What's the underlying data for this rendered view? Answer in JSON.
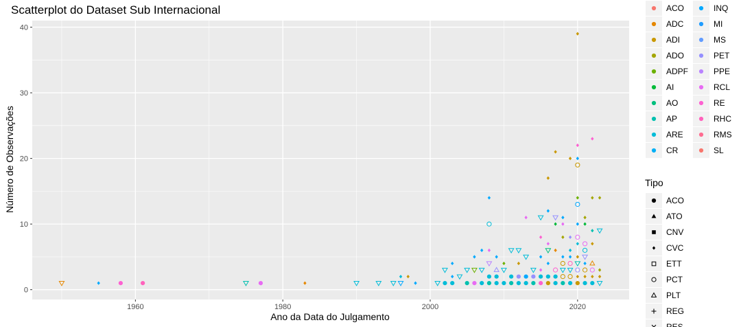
{
  "chart_data": {
    "type": "scatter",
    "title": "Scatterplot do Dataset Sub Internacional",
    "xlabel": "Ano da Data do Julgamento",
    "ylabel": "Número de Observações",
    "xlim": [
      1946,
      2027
    ],
    "ylim": [
      -1.5,
      41
    ],
    "xticks": [
      1960,
      1980,
      2000,
      2020
    ],
    "yticks": [
      0,
      10,
      20,
      30,
      40
    ],
    "grid": true,
    "colors": {
      "panel_bg": "#ebebeb",
      "grid": "#ffffff"
    },
    "color_legend": {
      "title": "",
      "entries": [
        {
          "label": "ACO",
          "color": "#F8766D"
        },
        {
          "label": "ADC",
          "color": "#E58700"
        },
        {
          "label": "ADI",
          "color": "#C99800"
        },
        {
          "label": "ADO",
          "color": "#A3A500"
        },
        {
          "label": "ADPF",
          "color": "#6BB100"
        },
        {
          "label": "AI",
          "color": "#00BA38"
        },
        {
          "label": "AO",
          "color": "#00BF7D"
        },
        {
          "label": "AP",
          "color": "#00C0AF"
        },
        {
          "label": "ARE",
          "color": "#00BCD8"
        },
        {
          "label": "CR",
          "color": "#00B0F6"
        },
        {
          "label": "INQ",
          "color": "#00A9FF"
        },
        {
          "label": "MI",
          "color": "#1F9CFF"
        },
        {
          "label": "MS",
          "color": "#619CFF"
        },
        {
          "label": "PET",
          "color": "#9590FF"
        },
        {
          "label": "PPE",
          "color": "#B983FF"
        },
        {
          "label": "RCL",
          "color": "#E76BF3"
        },
        {
          "label": "RE",
          "color": "#FD61D1"
        },
        {
          "label": "RHC",
          "color": "#FF62BC"
        },
        {
          "label": "RMS",
          "color": "#FF6C91"
        },
        {
          "label": "SL",
          "color": "#F8766D"
        }
      ]
    },
    "shape_legend": {
      "title": "Tipo",
      "entries": [
        {
          "label": "ACO",
          "shape": "circle"
        },
        {
          "label": "ATO",
          "shape": "triangle"
        },
        {
          "label": "CNV",
          "shape": "square"
        },
        {
          "label": "CVC",
          "shape": "diamond"
        },
        {
          "label": "ETT",
          "shape": "open-square"
        },
        {
          "label": "PCT",
          "shape": "open-circle"
        },
        {
          "label": "PLT",
          "shape": "open-triangle"
        },
        {
          "label": "REG",
          "shape": "plus"
        },
        {
          "label": "RES",
          "shape": "cross"
        }
      ]
    },
    "points": [
      {
        "x": 1950,
        "y": 1,
        "color": "#E58700",
        "shape": "open-triangle-down"
      },
      {
        "x": 1955,
        "y": 1,
        "color": "#00A9FF",
        "shape": "diamond"
      },
      {
        "x": 1958,
        "y": 1,
        "color": "#FD61D1",
        "shape": "circle"
      },
      {
        "x": 1961,
        "y": 1,
        "color": "#FF62BC",
        "shape": "circle"
      },
      {
        "x": 1975,
        "y": 1,
        "color": "#00C0AF",
        "shape": "open-triangle-down"
      },
      {
        "x": 1977,
        "y": 1,
        "color": "#E76BF3",
        "shape": "circle"
      },
      {
        "x": 1983,
        "y": 1,
        "color": "#E58700",
        "shape": "diamond"
      },
      {
        "x": 1990,
        "y": 1,
        "color": "#00BCD8",
        "shape": "open-triangle-down"
      },
      {
        "x": 1993,
        "y": 1,
        "color": "#00BCD8",
        "shape": "open-triangle-down"
      },
      {
        "x": 1995,
        "y": 1,
        "color": "#00BCD8",
        "shape": "open-triangle-down"
      },
      {
        "x": 1996,
        "y": 1,
        "color": "#00A9FF",
        "shape": "open-triangle-down"
      },
      {
        "x": 1996,
        "y": 2,
        "color": "#00BCD8",
        "shape": "diamond"
      },
      {
        "x": 1997,
        "y": 2,
        "color": "#C99800",
        "shape": "diamond"
      },
      {
        "x": 1998,
        "y": 1,
        "color": "#00A9FF",
        "shape": "diamond"
      },
      {
        "x": 2001,
        "y": 1,
        "color": "#00BCD8",
        "shape": "open-triangle-down"
      },
      {
        "x": 2002,
        "y": 1,
        "color": "#00BCD8",
        "shape": "circle"
      },
      {
        "x": 2002,
        "y": 3,
        "color": "#00BCD8",
        "shape": "open-triangle-down"
      },
      {
        "x": 2003,
        "y": 1,
        "color": "#00BCD8",
        "shape": "circle"
      },
      {
        "x": 2003,
        "y": 2,
        "color": "#00A9FF",
        "shape": "diamond"
      },
      {
        "x": 2003,
        "y": 4,
        "color": "#00A9FF",
        "shape": "diamond"
      },
      {
        "x": 2004,
        "y": 2,
        "color": "#00BCD8",
        "shape": "open-triangle-down"
      },
      {
        "x": 2005,
        "y": 3,
        "color": "#00BCD8",
        "shape": "open-triangle-down"
      },
      {
        "x": 2005,
        "y": 1,
        "color": "#00C0AF",
        "shape": "circle"
      },
      {
        "x": 2006,
        "y": 3,
        "color": "#6BB100",
        "shape": "open-triangle-down"
      },
      {
        "x": 2006,
        "y": 5,
        "color": "#00A9FF",
        "shape": "diamond"
      },
      {
        "x": 2006,
        "y": 1,
        "color": "#E76BF3",
        "shape": "circle"
      },
      {
        "x": 2007,
        "y": 6,
        "color": "#00A9FF",
        "shape": "diamond"
      },
      {
        "x": 2007,
        "y": 3,
        "color": "#00BCD8",
        "shape": "open-triangle-down"
      },
      {
        "x": 2007,
        "y": 1,
        "color": "#00BCD8",
        "shape": "circle"
      },
      {
        "x": 2008,
        "y": 14,
        "color": "#00A9FF",
        "shape": "diamond"
      },
      {
        "x": 2008,
        "y": 10,
        "color": "#00BCD8",
        "shape": "open-circle"
      },
      {
        "x": 2008,
        "y": 6,
        "color": "#E76BF3",
        "shape": "diamond"
      },
      {
        "x": 2008,
        "y": 4,
        "color": "#B983FF",
        "shape": "open-triangle-down"
      },
      {
        "x": 2008,
        "y": 2,
        "color": "#00BCD8",
        "shape": "circle"
      },
      {
        "x": 2008,
        "y": 1,
        "color": "#00C0AF",
        "shape": "circle"
      },
      {
        "x": 2009,
        "y": 3,
        "color": "#9590FF",
        "shape": "open-triangle"
      },
      {
        "x": 2009,
        "y": 5,
        "color": "#00A9FF",
        "shape": "diamond"
      },
      {
        "x": 2009,
        "y": 2,
        "color": "#00BCD8",
        "shape": "circle"
      },
      {
        "x": 2009,
        "y": 1,
        "color": "#00BCD8",
        "shape": "circle"
      },
      {
        "x": 2010,
        "y": 4,
        "color": "#6BB100",
        "shape": "diamond"
      },
      {
        "x": 2010,
        "y": 3,
        "color": "#00BCD8",
        "shape": "open-triangle-down"
      },
      {
        "x": 2010,
        "y": 1,
        "color": "#00BCD8",
        "shape": "circle"
      },
      {
        "x": 2011,
        "y": 6,
        "color": "#00BCD8",
        "shape": "open-triangle-down"
      },
      {
        "x": 2011,
        "y": 2,
        "color": "#00BCD8",
        "shape": "circle"
      },
      {
        "x": 2011,
        "y": 1,
        "color": "#00C0AF",
        "shape": "circle"
      },
      {
        "x": 2012,
        "y": 6,
        "color": "#00BCD8",
        "shape": "open-triangle-down"
      },
      {
        "x": 2012,
        "y": 4,
        "color": "#C99800",
        "shape": "diamond"
      },
      {
        "x": 2012,
        "y": 2,
        "color": "#9590FF",
        "shape": "circle"
      },
      {
        "x": 2012,
        "y": 1,
        "color": "#00BCD8",
        "shape": "circle"
      },
      {
        "x": 2013,
        "y": 11,
        "color": "#E76BF3",
        "shape": "diamond"
      },
      {
        "x": 2013,
        "y": 5,
        "color": "#00BCD8",
        "shape": "open-triangle-down"
      },
      {
        "x": 2013,
        "y": 2,
        "color": "#00A9FF",
        "shape": "circle"
      },
      {
        "x": 2013,
        "y": 1,
        "color": "#00BCD8",
        "shape": "circle"
      },
      {
        "x": 2014,
        "y": 3,
        "color": "#00BCD8",
        "shape": "open-triangle-down"
      },
      {
        "x": 2014,
        "y": 2,
        "color": "#9590FF",
        "shape": "circle"
      },
      {
        "x": 2014,
        "y": 1,
        "color": "#00C0AF",
        "shape": "circle"
      },
      {
        "x": 2015,
        "y": 11,
        "color": "#00BCD8",
        "shape": "open-triangle-down"
      },
      {
        "x": 2015,
        "y": 8,
        "color": "#FD61D1",
        "shape": "diamond"
      },
      {
        "x": 2015,
        "y": 5,
        "color": "#00A9FF",
        "shape": "diamond"
      },
      {
        "x": 2015,
        "y": 3,
        "color": "#E76BF3",
        "shape": "diamond"
      },
      {
        "x": 2015,
        "y": 2,
        "color": "#00BCD8",
        "shape": "circle"
      },
      {
        "x": 2015,
        "y": 1,
        "color": "#FD61D1",
        "shape": "circle"
      },
      {
        "x": 2016,
        "y": 17,
        "color": "#C99800",
        "shape": "diamond"
      },
      {
        "x": 2016,
        "y": 12,
        "color": "#00A9FF",
        "shape": "diamond"
      },
      {
        "x": 2016,
        "y": 7,
        "color": "#E76BF3",
        "shape": "diamond"
      },
      {
        "x": 2016,
        "y": 6,
        "color": "#00BF7D",
        "shape": "open-triangle-down"
      },
      {
        "x": 2016,
        "y": 4,
        "color": "#00A9FF",
        "shape": "diamond"
      },
      {
        "x": 2016,
        "y": 2,
        "color": "#00BCD8",
        "shape": "circle"
      },
      {
        "x": 2016,
        "y": 1,
        "color": "#C99800",
        "shape": "circle"
      },
      {
        "x": 2017,
        "y": 21,
        "color": "#C99800",
        "shape": "diamond"
      },
      {
        "x": 2017,
        "y": 11,
        "color": "#9590FF",
        "shape": "open-triangle-down"
      },
      {
        "x": 2017,
        "y": 10,
        "color": "#00BA38",
        "shape": "diamond"
      },
      {
        "x": 2017,
        "y": 6,
        "color": "#E58700",
        "shape": "diamond"
      },
      {
        "x": 2017,
        "y": 3,
        "color": "#FD61D1",
        "shape": "open-circle"
      },
      {
        "x": 2017,
        "y": 2,
        "color": "#00BCD8",
        "shape": "circle"
      },
      {
        "x": 2017,
        "y": 1,
        "color": "#00BCD8",
        "shape": "circle"
      },
      {
        "x": 2018,
        "y": 11,
        "color": "#00A9FF",
        "shape": "diamond"
      },
      {
        "x": 2018,
        "y": 10,
        "color": "#E76BF3",
        "shape": "diamond"
      },
      {
        "x": 2018,
        "y": 8,
        "color": "#A3A500",
        "shape": "diamond"
      },
      {
        "x": 2018,
        "y": 5,
        "color": "#00A9FF",
        "shape": "diamond"
      },
      {
        "x": 2018,
        "y": 4,
        "color": "#C99800",
        "shape": "open-circle"
      },
      {
        "x": 2018,
        "y": 3,
        "color": "#00BCD8",
        "shape": "open-triangle-down"
      },
      {
        "x": 2018,
        "y": 2,
        "color": "#C99800",
        "shape": "open-circle"
      },
      {
        "x": 2018,
        "y": 1,
        "color": "#00C0AF",
        "shape": "circle"
      },
      {
        "x": 2019,
        "y": 20,
        "color": "#C99800",
        "shape": "diamond"
      },
      {
        "x": 2019,
        "y": 8,
        "color": "#9590FF",
        "shape": "diamond"
      },
      {
        "x": 2019,
        "y": 6,
        "color": "#00BCD8",
        "shape": "diamond"
      },
      {
        "x": 2019,
        "y": 5,
        "color": "#00A9FF",
        "shape": "diamond"
      },
      {
        "x": 2019,
        "y": 4,
        "color": "#FF62BC",
        "shape": "open-circle"
      },
      {
        "x": 2019,
        "y": 3,
        "color": "#00BCD8",
        "shape": "open-triangle-down"
      },
      {
        "x": 2019,
        "y": 2,
        "color": "#C99800",
        "shape": "open-circle"
      },
      {
        "x": 2019,
        "y": 1,
        "color": "#00BCD8",
        "shape": "circle"
      },
      {
        "x": 2020,
        "y": 39,
        "color": "#C99800",
        "shape": "diamond"
      },
      {
        "x": 2020,
        "y": 22,
        "color": "#FD61D1",
        "shape": "diamond"
      },
      {
        "x": 2020,
        "y": 20,
        "color": "#00A9FF",
        "shape": "diamond"
      },
      {
        "x": 2020,
        "y": 19,
        "color": "#C99800",
        "shape": "open-circle"
      },
      {
        "x": 2020,
        "y": 14,
        "color": "#6BB100",
        "shape": "diamond"
      },
      {
        "x": 2020,
        "y": 13,
        "color": "#00A9FF",
        "shape": "open-circle"
      },
      {
        "x": 2020,
        "y": 10,
        "color": "#00A9FF",
        "shape": "diamond"
      },
      {
        "x": 2020,
        "y": 8,
        "color": "#E76BF3",
        "shape": "open-circle"
      },
      {
        "x": 2020,
        "y": 7,
        "color": "#00BCD8",
        "shape": "diamond"
      },
      {
        "x": 2020,
        "y": 5,
        "color": "#C99800",
        "shape": "diamond"
      },
      {
        "x": 2020,
        "y": 4,
        "color": "#00C0AF",
        "shape": "open-triangle-down"
      },
      {
        "x": 2020,
        "y": 3,
        "color": "#9590FF",
        "shape": "open-circle"
      },
      {
        "x": 2020,
        "y": 2,
        "color": "#C99800",
        "shape": "diamond"
      },
      {
        "x": 2020,
        "y": 1,
        "color": "#C99800",
        "shape": "circle"
      },
      {
        "x": 2021,
        "y": 11,
        "color": "#A3A500",
        "shape": "diamond"
      },
      {
        "x": 2021,
        "y": 10,
        "color": "#00BA38",
        "shape": "diamond"
      },
      {
        "x": 2021,
        "y": 7,
        "color": "#E76BF3",
        "shape": "open-circle"
      },
      {
        "x": 2021,
        "y": 6,
        "color": "#00BCD8",
        "shape": "open-circle"
      },
      {
        "x": 2021,
        "y": 5,
        "color": "#9590FF",
        "shape": "open-triangle-down"
      },
      {
        "x": 2021,
        "y": 4,
        "color": "#00A9FF",
        "shape": "diamond"
      },
      {
        "x": 2021,
        "y": 3,
        "color": "#C99800",
        "shape": "open-circle"
      },
      {
        "x": 2021,
        "y": 2,
        "color": "#C99800",
        "shape": "diamond"
      },
      {
        "x": 2021,
        "y": 1,
        "color": "#00BCD8",
        "shape": "circle"
      },
      {
        "x": 2022,
        "y": 23,
        "color": "#FD61D1",
        "shape": "diamond"
      },
      {
        "x": 2022,
        "y": 14,
        "color": "#A3A500",
        "shape": "diamond"
      },
      {
        "x": 2022,
        "y": 9,
        "color": "#00C0AF",
        "shape": "diamond"
      },
      {
        "x": 2022,
        "y": 7,
        "color": "#C99800",
        "shape": "diamond"
      },
      {
        "x": 2022,
        "y": 4,
        "color": "#E58700",
        "shape": "open-triangle"
      },
      {
        "x": 2022,
        "y": 3,
        "color": "#E76BF3",
        "shape": "open-circle"
      },
      {
        "x": 2022,
        "y": 2,
        "color": "#C99800",
        "shape": "diamond"
      },
      {
        "x": 2022,
        "y": 1,
        "color": "#00BCD8",
        "shape": "circle"
      },
      {
        "x": 2023,
        "y": 14,
        "color": "#A3A500",
        "shape": "diamond"
      },
      {
        "x": 2023,
        "y": 9,
        "color": "#00BCD8",
        "shape": "open-triangle-down"
      },
      {
        "x": 2023,
        "y": 3,
        "color": "#A3A500",
        "shape": "diamond"
      },
      {
        "x": 2023,
        "y": 2,
        "color": "#C99800",
        "shape": "diamond"
      },
      {
        "x": 2023,
        "y": 1,
        "color": "#00BCD8",
        "shape": "open-triangle-down"
      }
    ]
  }
}
